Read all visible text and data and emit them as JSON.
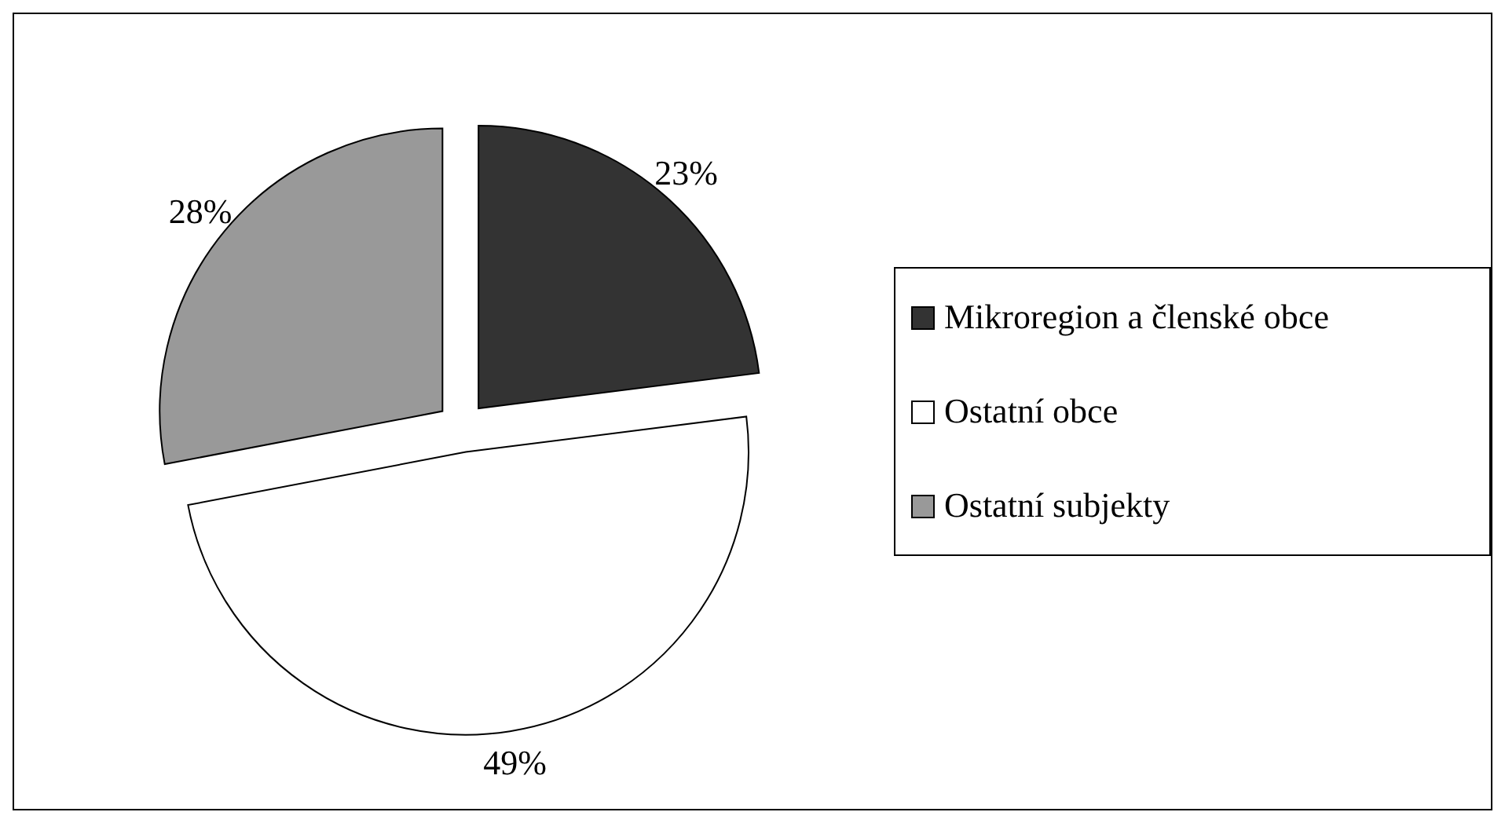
{
  "chart_data": {
    "type": "pie",
    "categories": [
      "Mikroregion a členské obce",
      "Ostatní obce",
      "Ostatní subjekty"
    ],
    "values": [
      23,
      49,
      28
    ],
    "colors": [
      "#333333",
      "#ffffff",
      "#999999"
    ],
    "value_labels": [
      "23%",
      "49%",
      "28%"
    ],
    "legend": "right"
  }
}
